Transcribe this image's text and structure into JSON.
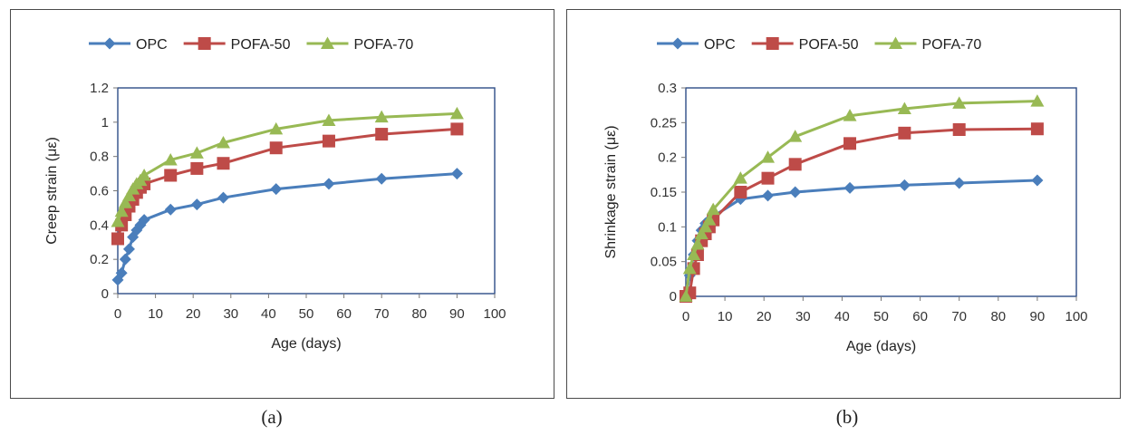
{
  "chart_data": [
    {
      "type": "line",
      "caption": "(a)",
      "xlabel": "Age (days)",
      "ylabel": "Creep strain (με)",
      "xlim": [
        0,
        100
      ],
      "ylim": [
        0,
        1.2
      ],
      "xticks": [
        "0",
        "10",
        "20",
        "30",
        "40",
        "50",
        "60",
        "70",
        "80",
        "90",
        "100"
      ],
      "yticks": [
        "0",
        "0.2",
        "0.4",
        "0.6",
        "0.8",
        "1",
        "1.2"
      ],
      "grid": false,
      "legend": "top",
      "x": [
        0,
        1,
        2,
        3,
        4,
        5,
        6,
        7,
        14,
        21,
        28,
        42,
        56,
        70,
        90
      ],
      "series": [
        {
          "name": "OPC",
          "color": "#4a7ebb",
          "marker": "diamond",
          "values": [
            0.08,
            0.12,
            0.2,
            0.26,
            0.33,
            0.37,
            0.4,
            0.43,
            0.49,
            0.52,
            0.56,
            0.61,
            0.64,
            0.67,
            0.7
          ]
        },
        {
          "name": "POFA-50",
          "color": "#be4b48",
          "marker": "square",
          "values": [
            0.32,
            0.4,
            0.46,
            0.51,
            0.55,
            0.59,
            0.62,
            0.64,
            0.69,
            0.73,
            0.76,
            0.85,
            0.89,
            0.93,
            0.96
          ]
        },
        {
          "name": "POFA-70",
          "color": "#98b954",
          "marker": "triangle",
          "values": [
            0.42,
            0.48,
            0.53,
            0.57,
            0.61,
            0.64,
            0.66,
            0.69,
            0.78,
            0.82,
            0.88,
            0.96,
            1.01,
            1.03,
            1.05
          ]
        }
      ]
    },
    {
      "type": "line",
      "caption": "(b)",
      "xlabel": "Age (days)",
      "ylabel": "Shrinkage strain (με)",
      "xlim": [
        0,
        100
      ],
      "ylim": [
        0,
        0.3
      ],
      "xticks": [
        "0",
        "10",
        "20",
        "30",
        "40",
        "50",
        "60",
        "70",
        "80",
        "90",
        "100"
      ],
      "yticks": [
        "0",
        "0.05",
        "0.1",
        "0.15",
        "0.2",
        "0.25",
        "0.3"
      ],
      "grid": false,
      "legend": "top",
      "x": [
        0,
        1,
        2,
        3,
        4,
        5,
        6,
        7,
        14,
        21,
        28,
        42,
        56,
        70,
        90
      ],
      "series": [
        {
          "name": "OPC",
          "color": "#4a7ebb",
          "marker": "diamond",
          "values": [
            0,
            0.03,
            0.06,
            0.08,
            0.095,
            0.105,
            0.11,
            0.115,
            0.14,
            0.145,
            0.15,
            0.156,
            0.16,
            0.163,
            0.167
          ]
        },
        {
          "name": "POFA-50",
          "color": "#be4b48",
          "marker": "square",
          "values": [
            0,
            0.005,
            0.04,
            0.06,
            0.08,
            0.09,
            0.1,
            0.11,
            0.15,
            0.17,
            0.19,
            0.22,
            0.235,
            0.24,
            0.241
          ]
        },
        {
          "name": "POFA-70",
          "color": "#98b954",
          "marker": "triangle",
          "values": [
            0,
            0.04,
            0.06,
            0.075,
            0.09,
            0.1,
            0.11,
            0.125,
            0.17,
            0.2,
            0.23,
            0.26,
            0.27,
            0.278,
            0.281
          ]
        }
      ]
    }
  ]
}
